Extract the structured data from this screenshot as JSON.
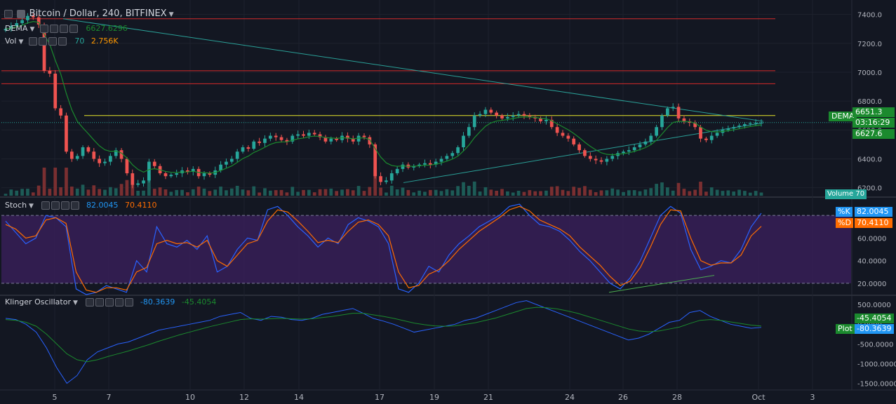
{
  "header": {
    "symbol_title": "Bitcoin / Dollar, 240, BITFINEX",
    "dema_label": "DEMA",
    "dema_value": "6627.6296",
    "vol_label": "Vol",
    "vol_length": "70",
    "vol_value": "2.756K"
  },
  "stoch_header": {
    "label": "Stoch",
    "k_value": "82.0045",
    "d_value": "70.4110"
  },
  "klinger_header": {
    "label": "Klinger Oscillator",
    "value1": "-80.3639",
    "value2": "-45.4054"
  },
  "badges": {
    "price_current": "6651.3",
    "countdown": "03:16:29",
    "dema_badge": "DEMA",
    "dema_price": "6627.6",
    "volume_tag": "Volume",
    "volume_value": "70",
    "k_tag": "%K",
    "k_val": "82.0045",
    "d_tag": "%D",
    "d_val": "70.4110",
    "klinger_sig": "-45.4054",
    "plot_tag": "Plot",
    "klinger_val": "-80.3639"
  },
  "colors": {
    "background": "#131722",
    "up": "#26a69a",
    "down": "#ef5350",
    "dema": "#1b8a2e",
    "stoch_k": "#2962ff",
    "stoch_d": "#ff6d00",
    "stoch_band": "#3a1f5b",
    "horizontal_red": "#d42a2a",
    "horizontal_yellow": "#e6e62a",
    "trendline": "#2aa198"
  },
  "chart_data": [
    {
      "type": "candlestick",
      "title": "Bitcoin / Dollar, 240, BITFINEX",
      "x_ticks": [
        "5",
        "7",
        "10",
        "12",
        "14",
        "17",
        "19",
        "21",
        "24",
        "26",
        "28",
        "Oct",
        "3"
      ],
      "y_ticks": [
        "7400.0",
        "7200.0",
        "7000.0",
        "6800.0",
        "6600.0",
        "6400.0",
        "6200.0"
      ],
      "ylim": [
        6140,
        7500
      ],
      "ohlc_close_path": [
        7300,
        7320,
        7340,
        7360,
        7390,
        7380,
        7330,
        7010,
        6990,
        6750,
        6700,
        6450,
        6400,
        6420,
        6480,
        6450,
        6400,
        6370,
        6380,
        6420,
        6460,
        6400,
        6300,
        6220,
        6230,
        6250,
        6380,
        6350,
        6300,
        6280,
        6290,
        6300,
        6320,
        6310,
        6330,
        6280,
        6300,
        6290,
        6320,
        6360,
        6380,
        6400,
        6450,
        6480,
        6470,
        6520,
        6510,
        6540,
        6560,
        6550,
        6530,
        6520,
        6560,
        6570,
        6560,
        6580,
        6570,
        6550,
        6520,
        6540,
        6530,
        6560,
        6540,
        6520,
        6560,
        6550,
        6500,
        6280,
        6240,
        6250,
        6300,
        6330,
        6360,
        6340,
        6350,
        6360,
        6370,
        6360,
        6380,
        6400,
        6420,
        6440,
        6480,
        6560,
        6620,
        6700,
        6710,
        6740,
        6720,
        6700,
        6680,
        6690,
        6700,
        6710,
        6700,
        6690,
        6680,
        6660,
        6670,
        6620,
        6580,
        6560,
        6540,
        6500,
        6460,
        6420,
        6400,
        6390,
        6380,
        6400,
        6420,
        6440,
        6450,
        6460,
        6480,
        6500,
        6520,
        6560,
        6620,
        6700,
        6750,
        6760,
        6680,
        6660,
        6650,
        6620,
        6540,
        6530,
        6560,
        6580,
        6600,
        6610,
        6620,
        6630,
        6640,
        6645,
        6650,
        6651
      ],
      "horizontal_levels": [
        7370,
        7010,
        6920,
        6700
      ],
      "dema_last": 6627.6,
      "current_price": 6651.3
    },
    {
      "type": "bar",
      "title": "Vol",
      "length": 70,
      "last_value": "2.756K"
    },
    {
      "type": "line",
      "title": "Stoch",
      "y_ticks": [
        "60.0000",
        "40.0000",
        "20.0000"
      ],
      "ylim": [
        10,
        95
      ],
      "bands": [
        20,
        80
      ],
      "series": [
        {
          "name": "%K",
          "values": [
            75,
            65,
            55,
            60,
            80,
            78,
            70,
            15,
            10,
            12,
            18,
            15,
            12,
            40,
            30,
            70,
            55,
            52,
            58,
            50,
            62,
            30,
            35,
            50,
            60,
            58,
            85,
            88,
            80,
            70,
            62,
            52,
            60,
            55,
            72,
            78,
            75,
            70,
            55,
            15,
            12,
            20,
            35,
            30,
            45,
            55,
            62,
            70,
            75,
            80,
            88,
            90,
            80,
            72,
            70,
            66,
            58,
            48,
            40,
            30,
            20,
            15,
            25,
            40,
            60,
            80,
            88,
            82,
            50,
            32,
            35,
            40,
            38,
            50,
            70,
            82
          ]
        },
        {
          "name": "%D",
          "values": [
            72,
            68,
            60,
            62,
            76,
            78,
            73,
            30,
            14,
            12,
            16,
            16,
            14,
            30,
            34,
            55,
            58,
            55,
            56,
            52,
            58,
            40,
            35,
            45,
            55,
            58,
            75,
            85,
            83,
            75,
            66,
            56,
            58,
            56,
            66,
            74,
            76,
            72,
            62,
            30,
            16,
            18,
            28,
            32,
            40,
            50,
            58,
            66,
            72,
            78,
            85,
            88,
            84,
            76,
            72,
            68,
            62,
            52,
            44,
            36,
            26,
            18,
            22,
            34,
            52,
            72,
            85,
            84,
            60,
            40,
            36,
            38,
            38,
            45,
            62,
            70.4
          ]
        }
      ]
    },
    {
      "type": "line",
      "title": "Klinger Oscillator",
      "y_ticks": [
        "500.0000",
        "0.0000",
        "-500.0000",
        "-1000.0000",
        "-1500.0000"
      ],
      "ylim": [
        -1650,
        700
      ],
      "series": [
        {
          "name": "Klinger",
          "values": [
            150,
            120,
            0,
            -200,
            -600,
            -1100,
            -1500,
            -1300,
            -900,
            -700,
            -600,
            -500,
            -450,
            -350,
            -250,
            -150,
            -100,
            -50,
            0,
            50,
            100,
            200,
            250,
            300,
            150,
            100,
            200,
            180,
            120,
            100,
            150,
            250,
            300,
            350,
            400,
            280,
            150,
            80,
            0,
            -100,
            -200,
            -150,
            -100,
            -50,
            0,
            100,
            150,
            250,
            350,
            450,
            550,
            600,
            500,
            400,
            300,
            200,
            100,
            0,
            -100,
            -200,
            -300,
            -400,
            -350,
            -250,
            -100,
            50,
            100,
            300,
            350,
            200,
            100,
            0,
            -50,
            -100,
            -80
          ]
        },
        {
          "name": "Signal",
          "values": [
            120,
            100,
            50,
            -50,
            -250,
            -500,
            -750,
            -900,
            -950,
            -900,
            -820,
            -750,
            -680,
            -600,
            -520,
            -430,
            -350,
            -270,
            -200,
            -130,
            -60,
            0,
            60,
            120,
            140,
            130,
            140,
            150,
            140,
            130,
            140,
            170,
            200,
            240,
            280,
            280,
            240,
            200,
            150,
            90,
            30,
            -10,
            -40,
            -50,
            -40,
            0,
            40,
            100,
            160,
            240,
            320,
            400,
            430,
            420,
            390,
            340,
            280,
            200,
            120,
            40,
            -40,
            -120,
            -170,
            -190,
            -170,
            -120,
            -70,
            20,
            100,
            120,
            100,
            60,
            20,
            -20,
            -45
          ]
        }
      ]
    }
  ]
}
